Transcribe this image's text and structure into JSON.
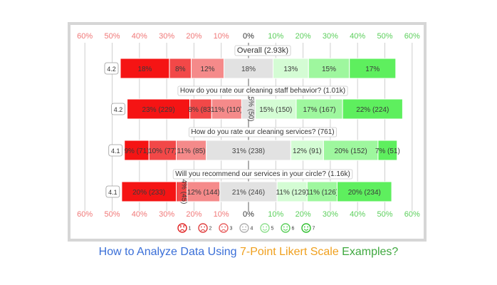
{
  "chart_data": {
    "type": "bar",
    "subtype": "diverging-stacked-likert",
    "axis": {
      "ticks": [
        {
          "label": "60%",
          "value": -60
        },
        {
          "label": "50%",
          "value": -50
        },
        {
          "label": "40%",
          "value": -40
        },
        {
          "label": "30%",
          "value": -30
        },
        {
          "label": "20%",
          "value": -20
        },
        {
          "label": "10%",
          "value": -10
        },
        {
          "label": "0%",
          "value": 0
        },
        {
          "label": "10%",
          "value": 10
        },
        {
          "label": "20%",
          "value": 20
        },
        {
          "label": "30%",
          "value": 30
        },
        {
          "label": "40%",
          "value": 40
        },
        {
          "label": "50%",
          "value": 50
        },
        {
          "label": "60%",
          "value": 60
        }
      ],
      "xlim": [
        -60,
        60
      ],
      "negative_color": "#f07878",
      "positive_color": "#5ccf5c",
      "zero_color": "#333333",
      "grid": true
    },
    "categories": [
      "1",
      "2",
      "3",
      "4",
      "5",
      "6",
      "7"
    ],
    "series_colors": [
      "#f51414",
      "#f24848",
      "#f58a8a",
      "#e2e2e2",
      "#d4fcd4",
      "#9ef79e",
      "#5eef5e"
    ],
    "questions": [
      {
        "title": "Overall (2.93k)",
        "score": "4.2",
        "values": [
          18,
          8,
          12,
          18,
          13,
          15,
          17
        ],
        "labels": [
          "18%",
          "8%",
          "12%",
          "18%",
          "13%",
          "15%",
          "17%"
        ]
      },
      {
        "title": "How do you rate our cleaning staff behavior? (1.01k)",
        "score": "4.2",
        "values": [
          23,
          8,
          11,
          5,
          15,
          17,
          22
        ],
        "labels": [
          "23% (229)",
          "8% (83)",
          "11% (110)",
          "5% (50)",
          "15% (150)",
          "17% (167)",
          "22% (224)"
        ]
      },
      {
        "title": "How do you rate our cleaning services? (761)",
        "score": "4.1",
        "values": [
          9,
          10,
          11,
          31,
          12,
          20,
          7
        ],
        "labels": [
          "9% (71)",
          "10% (77)",
          "11% (85)",
          "31% (238)",
          "12% (91)",
          "20% (152)",
          "7% (51)"
        ]
      },
      {
        "title": "Will you recommend our services in your circle? (1.16k)",
        "score": "4.1",
        "values": [
          20,
          4,
          12,
          21,
          11,
          11,
          20
        ],
        "labels": [
          "20% (233)",
          "4% (45)",
          "12% (144)",
          "21% (246)",
          "11% (129)",
          "11% (126)",
          "20% (234)"
        ]
      }
    ],
    "legend": [
      {
        "label": "1",
        "color": "#e02020",
        "face": "angry-face-icon"
      },
      {
        "label": "2",
        "color": "#e04040",
        "face": "sad-face-icon"
      },
      {
        "label": "3",
        "color": "#e86060",
        "face": "frown-face-icon"
      },
      {
        "label": "4",
        "color": "#b0b0b0",
        "face": "neutral-face-icon"
      },
      {
        "label": "5",
        "color": "#8fe08f",
        "face": "slight-smile-face-icon"
      },
      {
        "label": "6",
        "color": "#5ccf5c",
        "face": "smile-face-icon"
      },
      {
        "label": "7",
        "color": "#2fbf2f",
        "face": "grin-face-icon"
      }
    ],
    "legend_position": "bottom"
  },
  "caption": {
    "part1": "How to Analyze Data Using ",
    "part1_color": "#3a6fd8",
    "part2": "7-Point Likert Scale",
    "part2_color": "#f0a01e",
    "part3": " Examples?",
    "part3_color": "#3fa83f"
  }
}
